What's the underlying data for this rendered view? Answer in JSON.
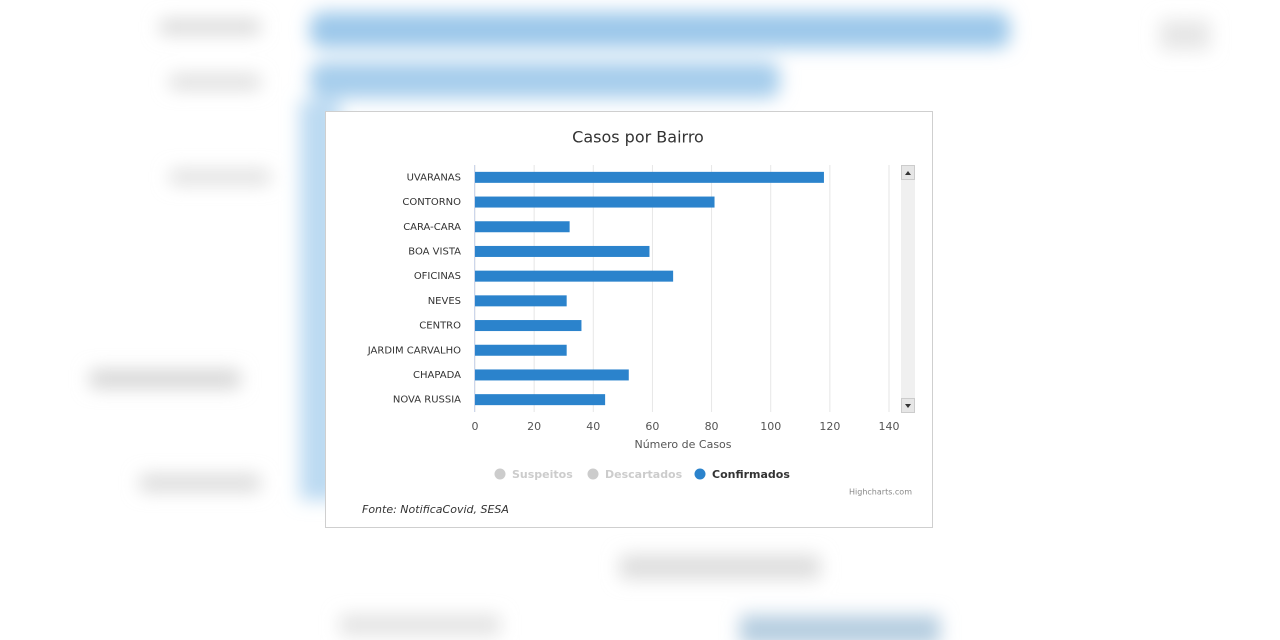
{
  "chart_data": {
    "type": "bar",
    "orientation": "horizontal",
    "title": "Casos por Bairro",
    "categories": [
      "UVARANAS",
      "CONTORNO",
      "CARA-CARA",
      "BOA VISTA",
      "OFICINAS",
      "NEVES",
      "CENTRO",
      "JARDIM CARVALHO",
      "CHAPADA",
      "NOVA RUSSIA"
    ],
    "series": [
      {
        "name": "Confirmados",
        "color": "#2b83cc",
        "values": [
          118,
          81,
          32,
          59,
          67,
          31,
          36,
          31,
          52,
          44
        ]
      }
    ],
    "legend": [
      {
        "name": "Suspeitos",
        "color": "#cccccc"
      },
      {
        "name": "Descartados",
        "color": "#cccccc"
      },
      {
        "name": "Confirmados",
        "color": "#2b83cc"
      }
    ],
    "xlabel": "Número de Casos",
    "xlim": [
      0,
      140
    ],
    "xticks": [
      0,
      20,
      40,
      60,
      80,
      100,
      120,
      140
    ],
    "grid": true,
    "credits": "Highcharts.com",
    "caption": "Fonte: NotificaCovid, SESA"
  }
}
